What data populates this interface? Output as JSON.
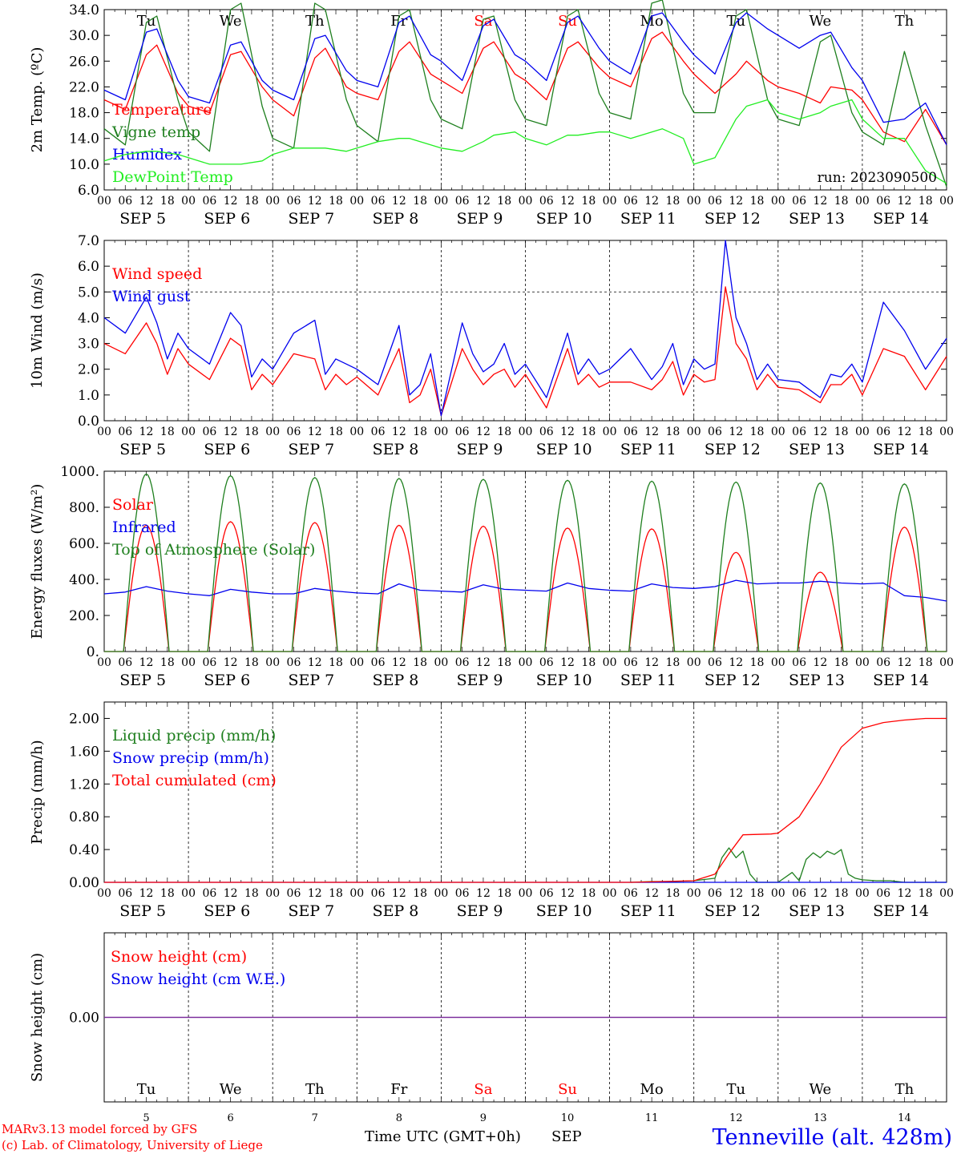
{
  "colors": {
    "red": "#ff0000",
    "green": "#1e7f1e",
    "blue": "#0000ee",
    "lightgreen": "#22ee22",
    "purple": "#7a2a9a",
    "axis": "#000000"
  },
  "days": [
    {
      "abbr": "Tu",
      "weekend": false,
      "date": "SEP  5",
      "num": "5"
    },
    {
      "abbr": "We",
      "weekend": false,
      "date": "SEP  6",
      "num": "6"
    },
    {
      "abbr": "Th",
      "weekend": false,
      "date": "SEP  7",
      "num": "7"
    },
    {
      "abbr": "Fr",
      "weekend": false,
      "date": "SEP  8",
      "num": "8"
    },
    {
      "abbr": "Sa",
      "weekend": true,
      "date": "SEP  9",
      "num": "9"
    },
    {
      "abbr": "Su",
      "weekend": true,
      "date": "SEP 10",
      "num": "10"
    },
    {
      "abbr": "Mo",
      "weekend": false,
      "date": "SEP 11",
      "num": "11"
    },
    {
      "abbr": "Tu",
      "weekend": false,
      "date": "SEP 12",
      "num": "12"
    },
    {
      "abbr": "We",
      "weekend": false,
      "date": "SEP 13",
      "num": "13"
    },
    {
      "abbr": "Th",
      "weekend": false,
      "date": "SEP 14",
      "num": "14"
    }
  ],
  "hour_labels": [
    "00",
    "06",
    "12",
    "18"
  ],
  "final_hour_label": "00",
  "footer": {
    "credit_line1": "MARv3.13 model forced by GFS",
    "credit_line2": "(c) Lab. of Climatology, University of Liege",
    "time_label": "Time UTC (GMT+0h)",
    "month": "SEP",
    "station": "Tenneville (alt. 428m)"
  },
  "chart_data": [
    {
      "type": "line",
      "ylabel": "2m Temp. (ºC)",
      "ylim": [
        6.0,
        34.0
      ],
      "yticks": [
        "6.0",
        "10.0",
        "14.0",
        "18.0",
        "22.0",
        "26.0",
        "30.0",
        "34.0"
      ],
      "ytick_values": [
        6,
        10,
        14,
        18,
        22,
        26,
        30,
        34
      ],
      "annotation": "run: 2023090500",
      "x_unit": "hours since SEP 5 00 UTC",
      "series": [
        {
          "name": "Temperature",
          "color": "#ff0000",
          "x": [
            0,
            6,
            12,
            15,
            21,
            24,
            30,
            36,
            39,
            45,
            48,
            54,
            60,
            63,
            69,
            72,
            78,
            84,
            87,
            93,
            96,
            102,
            108,
            111,
            117,
            120,
            126,
            132,
            135,
            141,
            144,
            150,
            156,
            159,
            165,
            168,
            174,
            180,
            183,
            189,
            192,
            198,
            204,
            207,
            213,
            216,
            222,
            228,
            234,
            240
          ],
          "y": [
            20,
            18.5,
            27,
            28.5,
            21,
            19,
            18,
            27,
            27.5,
            22,
            20,
            17.5,
            26.5,
            28,
            22,
            21,
            20,
            27.5,
            29,
            24,
            23,
            21,
            28,
            29,
            24,
            23,
            20,
            28,
            29,
            25,
            23.5,
            22,
            29.5,
            30.5,
            26,
            24,
            21,
            24,
            26,
            23,
            22,
            21,
            19.5,
            22,
            21.5,
            20,
            15,
            13.5,
            18.5,
            13
          ]
        },
        {
          "name": "Vigne temp",
          "color": "#1e7f1e",
          "x": [
            0,
            6,
            12,
            15,
            21,
            24,
            30,
            36,
            39,
            45,
            48,
            54,
            60,
            63,
            69,
            72,
            78,
            84,
            87,
            93,
            96,
            102,
            108,
            111,
            117,
            120,
            126,
            132,
            135,
            141,
            144,
            150,
            156,
            159,
            165,
            168,
            174,
            180,
            183,
            189,
            192,
            198,
            204,
            207,
            213,
            216,
            222,
            228,
            234,
            240
          ],
          "y": [
            15.5,
            13,
            32,
            33,
            20,
            15,
            12,
            34,
            35,
            19,
            14,
            12.5,
            35,
            34,
            20,
            16,
            13.5,
            33,
            34,
            20,
            17,
            15.5,
            32.5,
            33,
            20,
            17,
            16,
            33,
            34,
            21,
            18,
            17,
            35,
            35.5,
            21,
            18,
            18,
            33,
            34,
            20,
            17,
            16,
            29,
            30,
            18,
            15,
            13,
            27.5,
            16,
            6.5
          ]
        },
        {
          "name": "Humidex",
          "color": "#0000ee",
          "x": [
            0,
            6,
            12,
            15,
            21,
            24,
            30,
            36,
            39,
            45,
            48,
            54,
            60,
            63,
            69,
            72,
            78,
            84,
            87,
            93,
            96,
            102,
            108,
            111,
            117,
            120,
            126,
            132,
            135,
            141,
            144,
            150,
            156,
            159,
            165,
            168,
            174,
            180,
            183,
            189,
            192,
            198,
            204,
            207,
            213,
            216,
            222,
            228,
            234,
            240
          ],
          "y": [
            21.5,
            20,
            30.5,
            31,
            23,
            20.5,
            19.5,
            28.5,
            29,
            23,
            21.5,
            20,
            29.5,
            30,
            24.5,
            23,
            22,
            32,
            33,
            27,
            26,
            23,
            31.5,
            32.5,
            27,
            26,
            23,
            32,
            33,
            28,
            26,
            24,
            33,
            33.5,
            29,
            27,
            24,
            32,
            33.5,
            31,
            30,
            28,
            30,
            30.5,
            25,
            23,
            16.5,
            17,
            19.5,
            13
          ]
        },
        {
          "name": "DewPoint Temp",
          "color": "#22ee22",
          "x": [
            0,
            6,
            12,
            15,
            21,
            24,
            30,
            36,
            39,
            45,
            48,
            54,
            60,
            63,
            69,
            72,
            78,
            84,
            87,
            93,
            96,
            102,
            108,
            111,
            117,
            120,
            126,
            132,
            135,
            141,
            144,
            150,
            156,
            159,
            165,
            168,
            174,
            180,
            183,
            189,
            192,
            198,
            204,
            207,
            213,
            216,
            222,
            228,
            234,
            240
          ],
          "y": [
            10.5,
            11.5,
            12,
            12,
            11.5,
            11,
            10,
            10,
            10,
            10.5,
            11.5,
            12.5,
            12.5,
            12.5,
            12,
            12.5,
            13.5,
            14,
            14,
            13,
            12.5,
            12,
            13.5,
            14.5,
            15,
            14,
            13,
            14.5,
            14.5,
            15,
            15,
            14,
            15,
            15.5,
            14,
            10,
            11,
            17,
            19,
            20,
            18,
            17,
            18,
            19,
            20,
            17,
            14,
            14,
            9,
            7
          ]
        }
      ]
    },
    {
      "type": "line",
      "ylabel": "10m Wind (m/s)",
      "ylim": [
        0.0,
        7.0
      ],
      "yticks": [
        "0.0",
        "1.0",
        "2.0",
        "3.0",
        "4.0",
        "5.0",
        "6.0",
        "7.0"
      ],
      "ytick_values": [
        0,
        1,
        2,
        3,
        4,
        5,
        6,
        7
      ],
      "reference_line": 5.0,
      "x_unit": "hours since SEP 5 00 UTC",
      "series": [
        {
          "name": "Wind speed",
          "color": "#ff0000",
          "x": [
            0,
            6,
            12,
            15,
            18,
            21,
            24,
            30,
            36,
            39,
            42,
            45,
            48,
            54,
            60,
            63,
            66,
            69,
            72,
            78,
            84,
            87,
            90,
            93,
            96,
            102,
            105,
            108,
            111,
            114,
            117,
            120,
            126,
            132,
            135,
            138,
            141,
            144,
            150,
            156,
            159,
            162,
            165,
            168,
            171,
            174,
            177,
            180,
            183,
            186,
            189,
            192,
            198,
            204,
            207,
            210,
            213,
            216,
            222,
            228,
            234,
            240
          ],
          "y": [
            3.0,
            2.6,
            3.8,
            3.0,
            1.8,
            2.8,
            2.2,
            1.6,
            3.2,
            2.9,
            1.2,
            1.8,
            1.4,
            2.6,
            2.4,
            1.2,
            1.8,
            1.4,
            1.7,
            1.0,
            2.8,
            0.7,
            1.0,
            2.0,
            0.2,
            2.8,
            2.0,
            1.4,
            1.8,
            2.0,
            1.3,
            1.8,
            0.5,
            2.8,
            1.4,
            1.8,
            1.3,
            1.5,
            1.5,
            1.2,
            1.6,
            2.3,
            1.0,
            1.8,
            1.5,
            1.6,
            5.2,
            3.0,
            2.4,
            1.2,
            1.8,
            1.3,
            1.2,
            0.7,
            1.4,
            1.4,
            1.8,
            1.0,
            2.8,
            2.5,
            1.2,
            2.5
          ]
        },
        {
          "name": "Wind gust",
          "color": "#0000ee",
          "x": [
            0,
            6,
            12,
            15,
            18,
            21,
            24,
            30,
            36,
            39,
            42,
            45,
            48,
            54,
            60,
            63,
            66,
            69,
            72,
            78,
            84,
            87,
            90,
            93,
            96,
            102,
            105,
            108,
            111,
            114,
            117,
            120,
            126,
            132,
            135,
            138,
            141,
            144,
            150,
            156,
            159,
            162,
            165,
            168,
            171,
            174,
            177,
            180,
            183,
            186,
            189,
            192,
            198,
            204,
            207,
            210,
            213,
            216,
            222,
            228,
            234,
            240
          ],
          "y": [
            4.0,
            3.4,
            4.8,
            3.8,
            2.4,
            3.4,
            2.8,
            2.2,
            4.2,
            3.7,
            1.7,
            2.4,
            2.0,
            3.4,
            3.9,
            1.8,
            2.4,
            2.2,
            2.0,
            1.4,
            3.7,
            1.0,
            1.4,
            2.6,
            0.2,
            3.8,
            2.6,
            1.9,
            2.2,
            3.0,
            1.8,
            2.2,
            0.9,
            3.4,
            1.8,
            2.4,
            1.8,
            2.0,
            2.8,
            1.6,
            2.1,
            3.0,
            1.4,
            2.4,
            2.0,
            2.2,
            7.0,
            4.0,
            3.0,
            1.6,
            2.2,
            1.6,
            1.5,
            0.9,
            1.8,
            1.7,
            2.2,
            1.5,
            4.6,
            3.5,
            2.0,
            3.2
          ]
        }
      ]
    },
    {
      "type": "line",
      "ylabel": "Energy fluxes (W/m²)",
      "ylim": [
        0,
        1000
      ],
      "yticks": [
        "0.",
        "200.",
        "400.",
        "600.",
        "800.",
        "1000."
      ],
      "ytick_values": [
        0,
        200,
        400,
        600,
        800,
        1000
      ],
      "x_unit": "hours since SEP 5 00 UTC",
      "diurnal": {
        "sunrise_hour": 5.5,
        "sunset_hour": 18.5,
        "toa_peaks": [
          985,
          975,
          965,
          960,
          955,
          950,
          945,
          940,
          935,
          930
        ],
        "solar_peaks": [
          700,
          720,
          715,
          700,
          695,
          685,
          680,
          550,
          440,
          690
        ]
      },
      "series": [
        {
          "name": "Solar",
          "color": "#ff0000",
          "derived_from": "diurnal.solar_peaks"
        },
        {
          "name": "Infrared",
          "color": "#0000ee",
          "x": [
            0,
            6,
            12,
            18,
            24,
            30,
            36,
            42,
            48,
            54,
            60,
            66,
            72,
            78,
            84,
            90,
            96,
            102,
            108,
            114,
            120,
            126,
            132,
            138,
            144,
            150,
            156,
            162,
            168,
            174,
            180,
            186,
            192,
            198,
            204,
            210,
            216,
            222,
            228,
            234,
            240
          ],
          "y": [
            320,
            330,
            360,
            335,
            320,
            310,
            345,
            330,
            320,
            320,
            350,
            335,
            325,
            320,
            375,
            340,
            335,
            330,
            370,
            345,
            340,
            335,
            380,
            350,
            340,
            335,
            375,
            355,
            350,
            360,
            395,
            375,
            380,
            380,
            390,
            380,
            375,
            380,
            310,
            300,
            280
          ]
        },
        {
          "name": "Top of Atmosphere (Solar)",
          "color": "#1e7f1e",
          "derived_from": "diurnal.toa_peaks"
        }
      ]
    },
    {
      "type": "line",
      "ylabel": "Precip (mm/h)",
      "ylim": [
        0.0,
        2.2
      ],
      "yticks": [
        "0.00",
        "0.40",
        "0.80",
        "1.20",
        "1.60",
        "2.00"
      ],
      "ytick_values": [
        0,
        0.4,
        0.8,
        1.2,
        1.6,
        2.0
      ],
      "x_unit": "hours since SEP 5 00 UTC",
      "series": [
        {
          "name": "Liquid precip (mm/h)",
          "color": "#1e7f1e",
          "x": [
            150,
            156,
            162,
            168,
            174,
            176,
            178,
            180,
            182,
            184,
            186,
            188,
            190,
            192,
            196,
            198,
            200,
            202,
            204,
            206,
            208,
            210,
            212,
            214,
            216,
            220,
            224,
            228,
            234,
            240
          ],
          "y": [
            0,
            0.01,
            0.01,
            0.02,
            0.05,
            0.3,
            0.42,
            0.3,
            0.38,
            0.1,
            0,
            0,
            0,
            0,
            0.12,
            0.02,
            0.28,
            0.36,
            0.3,
            0.38,
            0.34,
            0.4,
            0.1,
            0.05,
            0.03,
            0.02,
            0.02,
            0,
            0,
            0
          ]
        },
        {
          "name": "Snow precip (mm/h)",
          "color": "#0000ee",
          "x": [
            0,
            240
          ],
          "y": [
            0,
            0
          ]
        },
        {
          "name": "Total cumulated (cm)",
          "color": "#ff0000",
          "x": [
            0,
            150,
            168,
            174,
            178,
            182,
            190,
            192,
            198,
            204,
            210,
            216,
            222,
            228,
            234,
            240
          ],
          "y": [
            0,
            0,
            0.02,
            0.1,
            0.35,
            0.58,
            0.59,
            0.6,
            0.8,
            1.2,
            1.65,
            1.88,
            1.95,
            1.98,
            2.0,
            2.0
          ]
        }
      ]
    },
    {
      "type": "line",
      "ylabel": "Snow height (cm)",
      "ylim": [
        -1,
        1
      ],
      "yticks": [
        "0.00"
      ],
      "ytick_values": [
        0
      ],
      "x_unit": "hours since SEP 5 00 UTC",
      "series": [
        {
          "name": "Snow height (cm)",
          "color": "#ff0000",
          "x": [
            0,
            240
          ],
          "y": [
            0,
            0
          ]
        },
        {
          "name": "Snow height (cm W.E.)",
          "color": "#0000ee",
          "x": [
            0,
            240
          ],
          "y": [
            0,
            0
          ]
        }
      ]
    }
  ]
}
